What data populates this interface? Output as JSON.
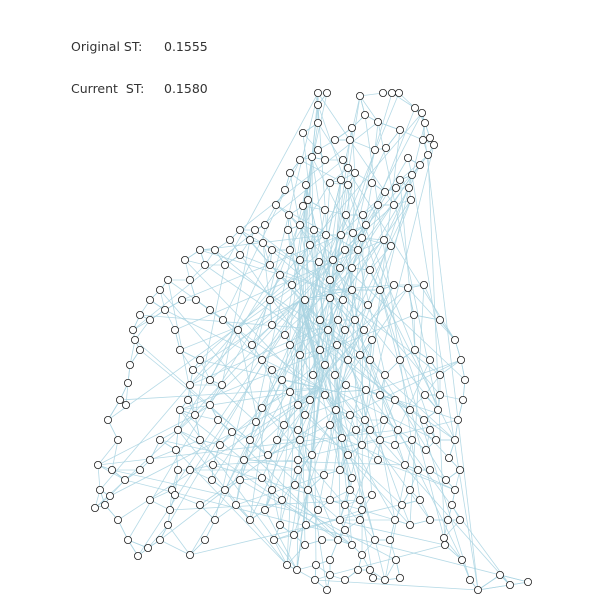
{
  "readout": {
    "original_label": "Original ST:",
    "original_value": "0.1555",
    "current_label": "Current  ST:",
    "current_value": "0.1580"
  },
  "colors": {
    "edge": "#a9d3e2",
    "node_stroke": "#222222",
    "node_fill": "#ffffff",
    "text": "#333333"
  }
}
